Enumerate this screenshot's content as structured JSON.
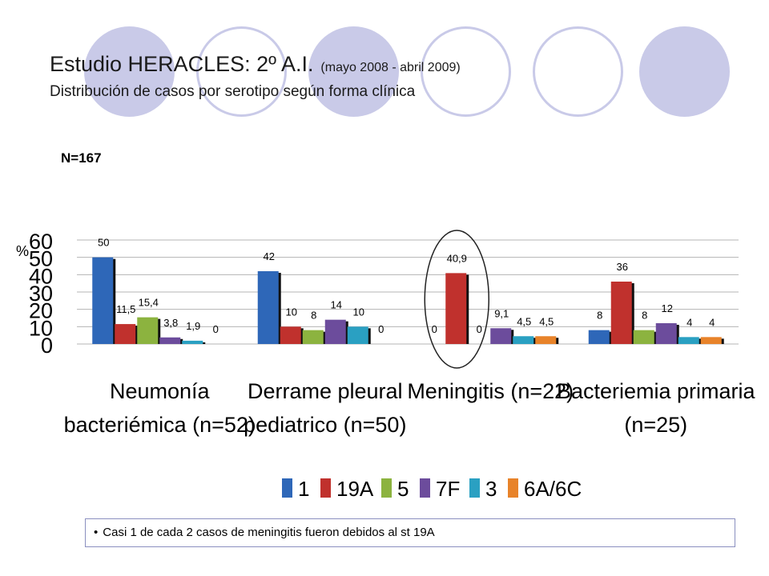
{
  "header": {
    "title_main": "Estudio HERACLES: 2º A.I.",
    "title_period": "(mayo 2008 - abril 2009)",
    "subtitle": "Distribución de casos por serotipo según forma clínica",
    "n_label": "N=167"
  },
  "theme": {
    "decor_color": "#c9cae8",
    "note_border": "#8a8fbf"
  },
  "chart_data": {
    "type": "bar",
    "ylabel": "%",
    "ylim": [
      0,
      60
    ],
    "yticks": [
      "0",
      "10",
      "20",
      "30",
      "40",
      "50",
      "60"
    ],
    "grid": true,
    "legend_position": "bottom",
    "categories": [
      "Neumonía bacteriémica (n=52)",
      "Derrame pleural pediatrico (n=50)",
      "Meningitis (n=22)",
      "Bacteriemia primaria (n=25)"
    ],
    "series": [
      {
        "name": "1",
        "color": "#2e67b8",
        "values": [
          50,
          42,
          0,
          8
        ],
        "labels": [
          "50",
          "42",
          "0",
          "8"
        ]
      },
      {
        "name": "19A",
        "color": "#c0312d",
        "values": [
          11.5,
          10,
          40.9,
          36
        ],
        "labels": [
          "11,5",
          "10",
          "40,9",
          "36"
        ]
      },
      {
        "name": "5",
        "color": "#8cb33f",
        "values": [
          15.4,
          8,
          0,
          8
        ],
        "labels": [
          "15,4",
          "8",
          "0",
          "8"
        ]
      },
      {
        "name": "7F",
        "color": "#6c4c9c",
        "values": [
          3.8,
          14,
          9.1,
          12
        ],
        "labels": [
          "3,8",
          "14",
          "9,1",
          "12"
        ]
      },
      {
        "name": "3",
        "color": "#2aa0c2",
        "values": [
          1.9,
          10,
          4.5,
          4
        ],
        "labels": [
          "1,9",
          "10",
          "4,5",
          "4"
        ]
      },
      {
        "name": "6A/6C",
        "color": "#e8832a",
        "values": [
          0,
          0,
          4.5,
          4
        ],
        "labels": [
          "0",
          "0",
          "4,5",
          "4"
        ]
      }
    ],
    "annotation": {
      "type": "ellipse",
      "category": "Meningitis (n=22)",
      "series": "19A"
    }
  },
  "note": {
    "text": "Casi 1 de cada 2 casos  de meningitis fueron debidos al st 19A"
  }
}
